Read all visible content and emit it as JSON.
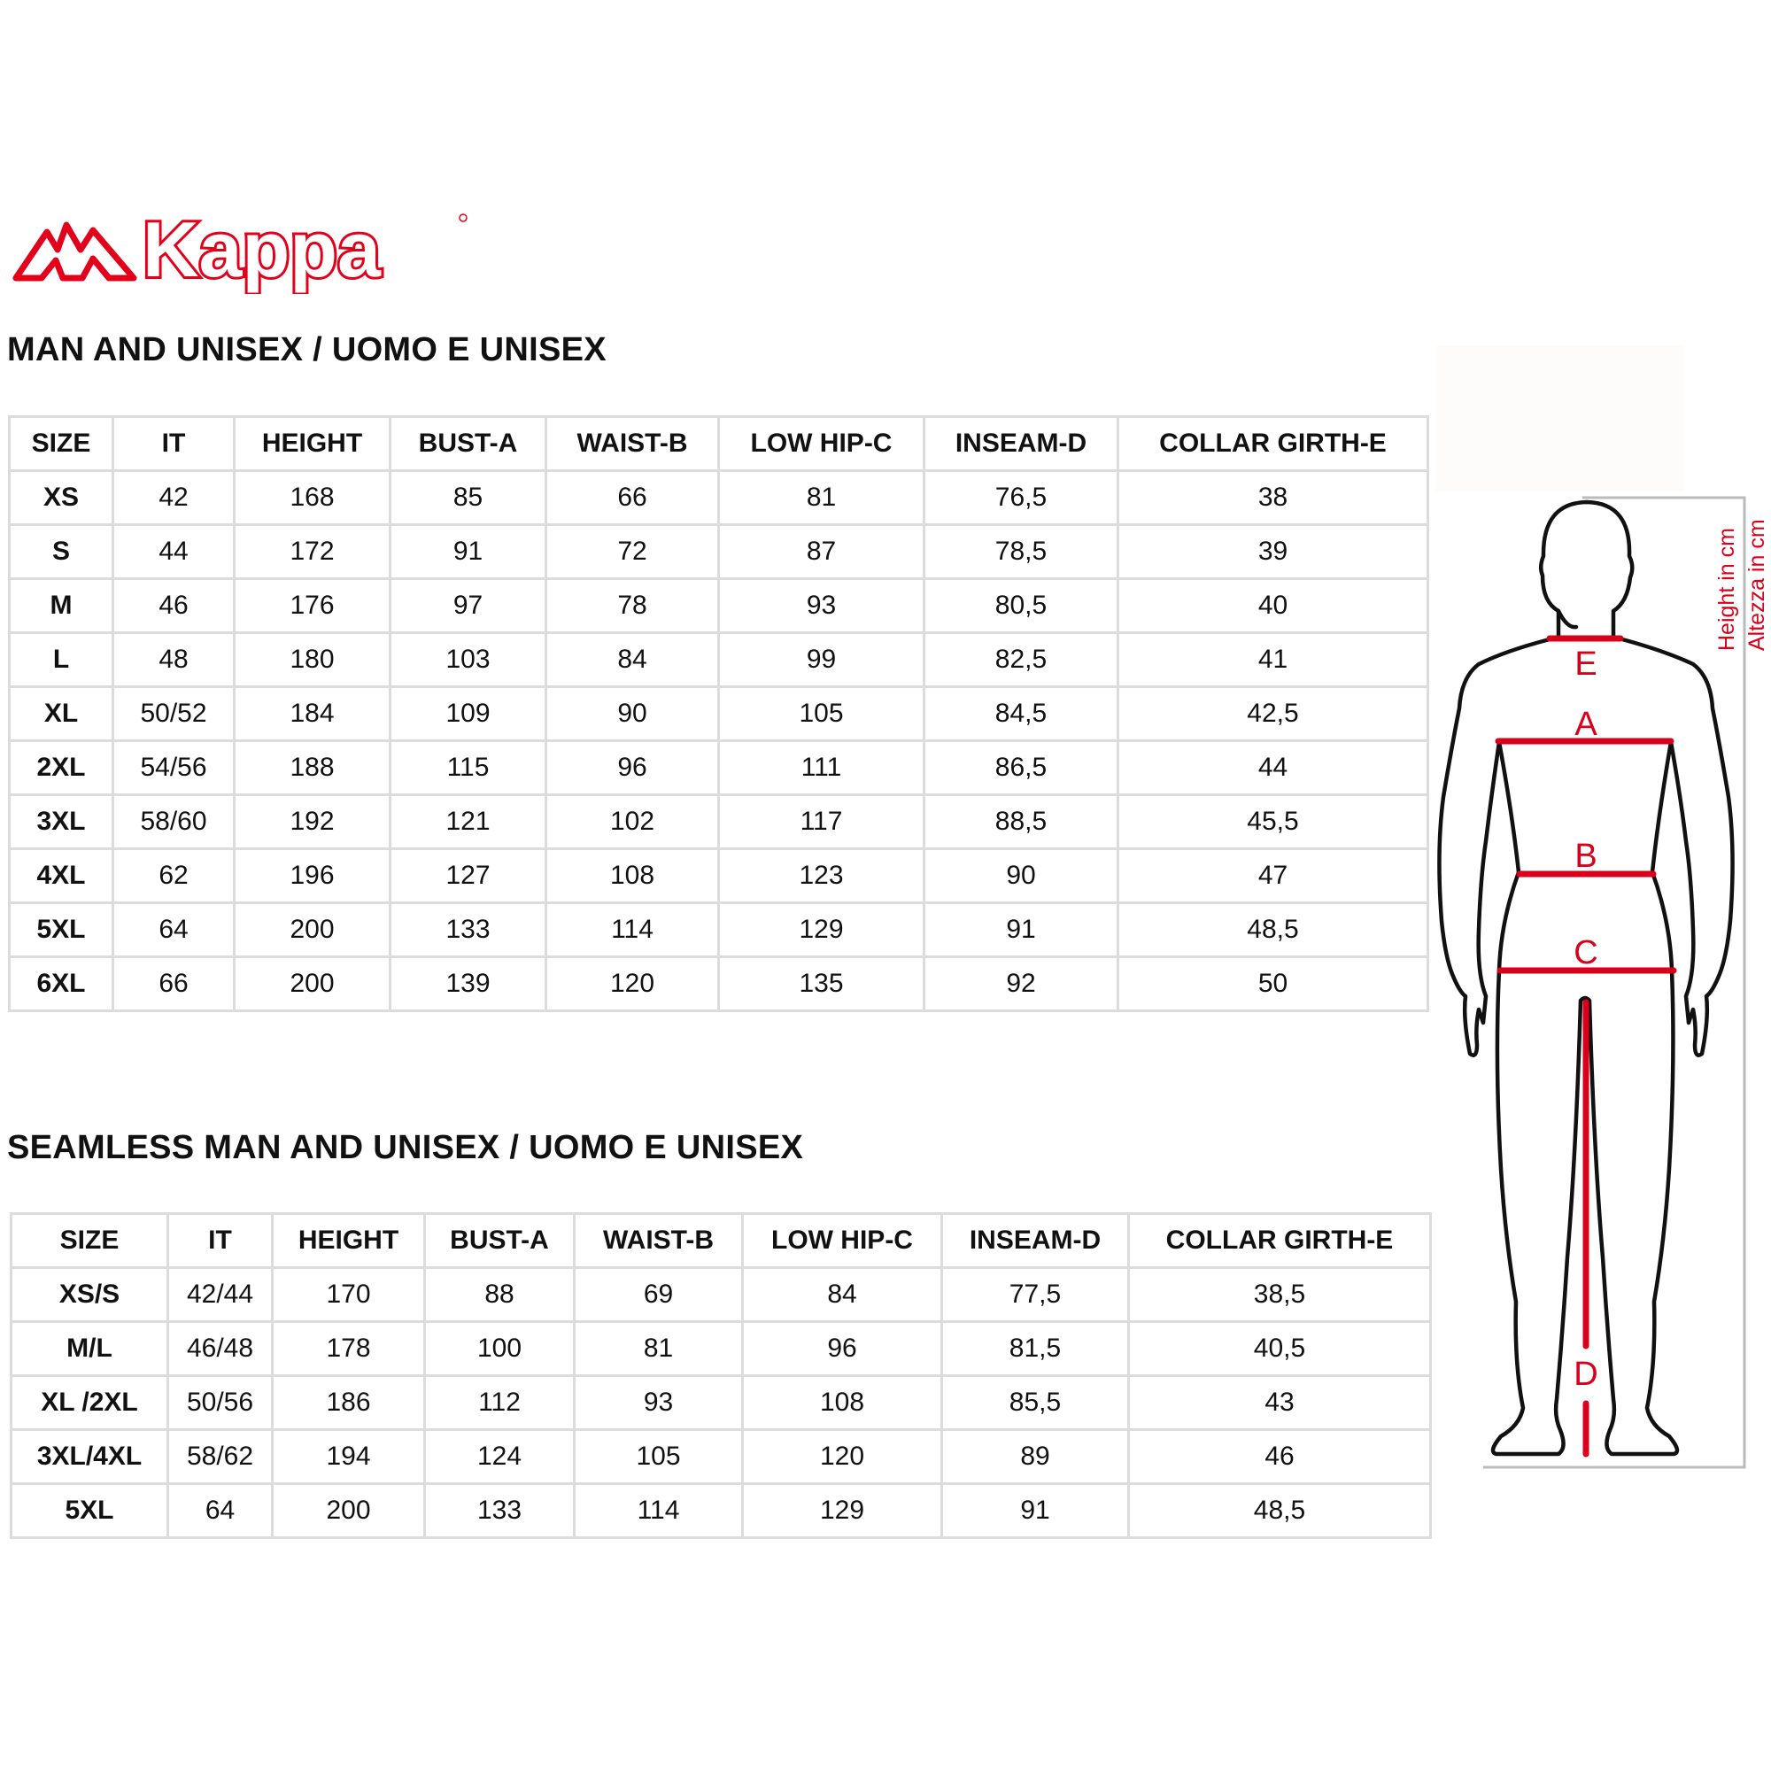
{
  "logo": {
    "text": "Kappa",
    "color": "#e3001b"
  },
  "table1": {
    "title": "MAN AND UNISEX / UOMO E UNISEX",
    "headers": [
      "SIZE",
      "IT",
      "HEIGHT",
      "BUST-A",
      "WAIST-B",
      "LOW HIP-C",
      "INSEAM-D",
      "COLLAR GIRTH-E"
    ],
    "rows": [
      [
        "XS",
        "42",
        "168",
        "85",
        "66",
        "81",
        "76,5",
        "38"
      ],
      [
        "S",
        "44",
        "172",
        "91",
        "72",
        "87",
        "78,5",
        "39"
      ],
      [
        "M",
        "46",
        "176",
        "97",
        "78",
        "93",
        "80,5",
        "40"
      ],
      [
        "L",
        "48",
        "180",
        "103",
        "84",
        "99",
        "82,5",
        "41"
      ],
      [
        "XL",
        "50/52",
        "184",
        "109",
        "90",
        "105",
        "84,5",
        "42,5"
      ],
      [
        "2XL",
        "54/56",
        "188",
        "115",
        "96",
        "111",
        "86,5",
        "44"
      ],
      [
        "3XL",
        "58/60",
        "192",
        "121",
        "102",
        "117",
        "88,5",
        "45,5"
      ],
      [
        "4XL",
        "62",
        "196",
        "127",
        "108",
        "123",
        "90",
        "47"
      ],
      [
        "5XL",
        "64",
        "200",
        "133",
        "114",
        "129",
        "91",
        "48,5"
      ],
      [
        "6XL",
        "66",
        "200",
        "139",
        "120",
        "135",
        "92",
        "50"
      ]
    ]
  },
  "table2": {
    "title": "SEAMLESS MAN AND UNISEX / UOMO E UNISEX",
    "headers": [
      "SIZE",
      "IT",
      "HEIGHT",
      "BUST-A",
      "WAIST-B",
      "LOW HIP-C",
      "INSEAM-D",
      "COLLAR GIRTH-E"
    ],
    "rows": [
      [
        "XS/S",
        "42/44",
        "170",
        "88",
        "69",
        "84",
        "77,5",
        "38,5"
      ],
      [
        "M/L",
        "46/48",
        "178",
        "100",
        "81",
        "96",
        "81,5",
        "40,5"
      ],
      [
        "XL /2XL",
        "50/56",
        "186",
        "112",
        "93",
        "108",
        "85,5",
        "43"
      ],
      [
        "3XL/4XL",
        "58/62",
        "194",
        "124",
        "105",
        "120",
        "89",
        "46"
      ],
      [
        "5XL",
        "64",
        "200",
        "133",
        "114",
        "129",
        "91",
        "48,5"
      ]
    ]
  },
  "figure": {
    "labels": {
      "a": "A",
      "b": "B",
      "c": "C",
      "d": "D",
      "e": "E"
    },
    "height_en": "Height in cm",
    "height_it": "Altezza in cm",
    "accent": "#d9001b"
  }
}
